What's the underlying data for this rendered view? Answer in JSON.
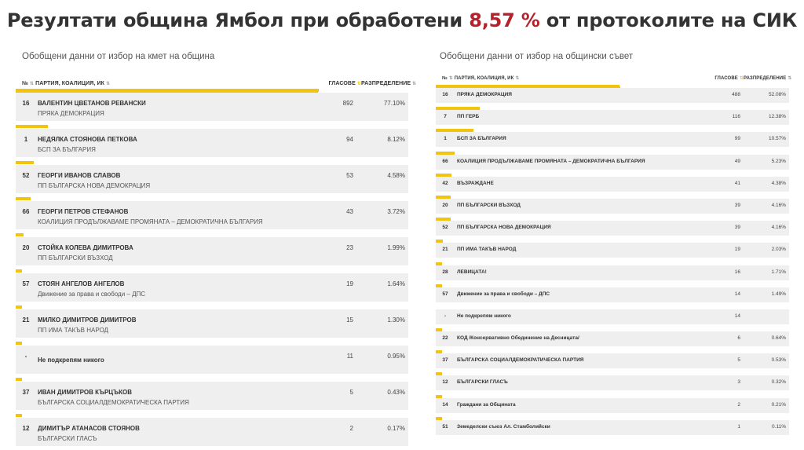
{
  "headline": {
    "prefix": "Резултати община Ямбол при обработени",
    "percent": "8,57 %",
    "suffix": "от протоколите на СИК"
  },
  "colors": {
    "accent": "#f1c40f",
    "highlight": "#b5222b",
    "row_bg": "#efefef"
  },
  "mayor": {
    "title": "Обобщени данни от избор на кмет на община",
    "headers": {
      "number": "№",
      "name": "ПАРТИЯ, КОАЛИЦИЯ, ИК",
      "votes": "ГЛАСОВЕ",
      "share": "РАЗПРЕДЕЛЕНИЕ"
    },
    "rows": [
      {
        "num": "16",
        "name": "ВАЛЕНТИН ЦВЕТАНОВ РЕВАНСКИ",
        "party": "ПРЯКА ДЕМОКРАЦИЯ",
        "votes": "892",
        "share": "77.10%",
        "ratio": 0.771
      },
      {
        "num": "1",
        "name": "НЕДЯЛКА СТОЯНОВА ПЕТКОВА",
        "party": "БСП ЗА БЪЛГАРИЯ",
        "votes": "94",
        "share": "8.12%",
        "ratio": 0.0812
      },
      {
        "num": "52",
        "name": "ГЕОРГИ ИВАНОВ СЛАВОВ",
        "party": "ПП БЪЛГАРСКА НОВА ДЕМОКРАЦИЯ",
        "votes": "53",
        "share": "4.58%",
        "ratio": 0.0458
      },
      {
        "num": "66",
        "name": "ГЕОРГИ ПЕТРОВ СТЕФАНОВ",
        "party": "КОАЛИЦИЯ ПРОДЪЛЖАВАМЕ ПРОМЯНАТА – ДЕМОКРАТИЧНА БЪЛГАРИЯ",
        "votes": "43",
        "share": "3.72%",
        "ratio": 0.0372
      },
      {
        "num": "20",
        "name": "СТОЙКА КОЛЕВА ДИМИТРОВА",
        "party": "ПП БЪЛГАРСКИ ВЪЗХОД",
        "votes": "23",
        "share": "1.99%",
        "ratio": 0.0199
      },
      {
        "num": "57",
        "name": "СТОЯН АНГЕЛОВ АНГЕЛОВ",
        "party": "Движение за права и свободи – ДПС",
        "votes": "19",
        "share": "1.64%",
        "ratio": 0.0164
      },
      {
        "num": "21",
        "name": "МИЛКО ДИМИТРОВ ДИМИТРОВ",
        "party": "ПП ИМА ТАКЪВ НАРОД",
        "votes": "15",
        "share": "1.30%",
        "ratio": 0.013
      },
      {
        "num": "-",
        "name": "Не подкрепям никого",
        "party": "",
        "votes": "11",
        "share": "0.95%",
        "ratio": 0.0095
      },
      {
        "num": "37",
        "name": "ИВАН ДИМИТРОВ КЪРЦЪКОВ",
        "party": "БЪЛГАРСКА СОЦИАЛДЕМОКРАТИЧЕСКА ПАРТИЯ",
        "votes": "5",
        "share": "0.43%",
        "ratio": 0.0043
      },
      {
        "num": "12",
        "name": "ДИМИТЪР АТАНАСОВ СТОЯНОВ",
        "party": "БЪЛГАРСКИ ГЛАСЪ",
        "votes": "2",
        "share": "0.17%",
        "ratio": 0.0017
      }
    ]
  },
  "council": {
    "title": "Обобщени данни от избор на общински съвет",
    "headers": {
      "number": "№",
      "name": "ПАРТИЯ, КОАЛИЦИЯ, ИК",
      "votes": "ГЛАСОВЕ",
      "share": "РАЗПРЕДЕЛЕНИЕ"
    },
    "rows": [
      {
        "num": "16",
        "name": "ПРЯКА ДЕМОКРАЦИЯ",
        "votes": "488",
        "share": "52.08%",
        "ratio": 0.5208
      },
      {
        "num": "7",
        "name": "ПП ГЕРБ",
        "votes": "116",
        "share": "12.38%",
        "ratio": 0.1238
      },
      {
        "num": "1",
        "name": "БСП ЗА БЪЛГАРИЯ",
        "votes": "99",
        "share": "10.57%",
        "ratio": 0.1057
      },
      {
        "num": "66",
        "name": "КОАЛИЦИЯ ПРОДЪЛЖАВАМЕ ПРОМЯНАТА – ДЕМОКРАТИЧНА БЪЛГАРИЯ",
        "votes": "49",
        "share": "5.23%",
        "ratio": 0.0523
      },
      {
        "num": "42",
        "name": "ВЪЗРАЖДАНЕ",
        "votes": "41",
        "share": "4.38%",
        "ratio": 0.0438
      },
      {
        "num": "20",
        "name": "ПП БЪЛГАРСКИ ВЪЗХОД",
        "votes": "39",
        "share": "4.16%",
        "ratio": 0.0416
      },
      {
        "num": "52",
        "name": "ПП БЪЛГАРСКА НОВА ДЕМОКРАЦИЯ",
        "votes": "39",
        "share": "4.16%",
        "ratio": 0.0416
      },
      {
        "num": "21",
        "name": "ПП ИМА ТАКЪВ НАРОД",
        "votes": "19",
        "share": "2.03%",
        "ratio": 0.0203
      },
      {
        "num": "28",
        "name": "ЛЕВИЦАТА!",
        "votes": "16",
        "share": "1.71%",
        "ratio": 0.0171
      },
      {
        "num": "57",
        "name": "Движение за права и свободи – ДПС",
        "votes": "14",
        "share": "1.49%",
        "ratio": 0.0149
      },
      {
        "num": "-",
        "name": "Не подкрепям никого",
        "votes": "14",
        "share": "",
        "ratio": 0
      },
      {
        "num": "22",
        "name": "КОД /Консервативно Обединение на Десницата/",
        "votes": "6",
        "share": "0.64%",
        "ratio": 0.0064
      },
      {
        "num": "37",
        "name": "БЪЛГАРСКА СОЦИАЛДЕМОКРАТИЧЕСКА ПАРТИЯ",
        "votes": "5",
        "share": "0.53%",
        "ratio": 0.0053
      },
      {
        "num": "12",
        "name": "БЪЛГАРСКИ ГЛАСЪ",
        "votes": "3",
        "share": "0.32%",
        "ratio": 0.0032
      },
      {
        "num": "14",
        "name": "Граждани за Общината",
        "votes": "2",
        "share": "0.21%",
        "ratio": 0.0021
      },
      {
        "num": "51",
        "name": "Земеделски съюз Ал. Стамболийски",
        "votes": "1",
        "share": "0.11%",
        "ratio": 0.0011
      }
    ]
  }
}
